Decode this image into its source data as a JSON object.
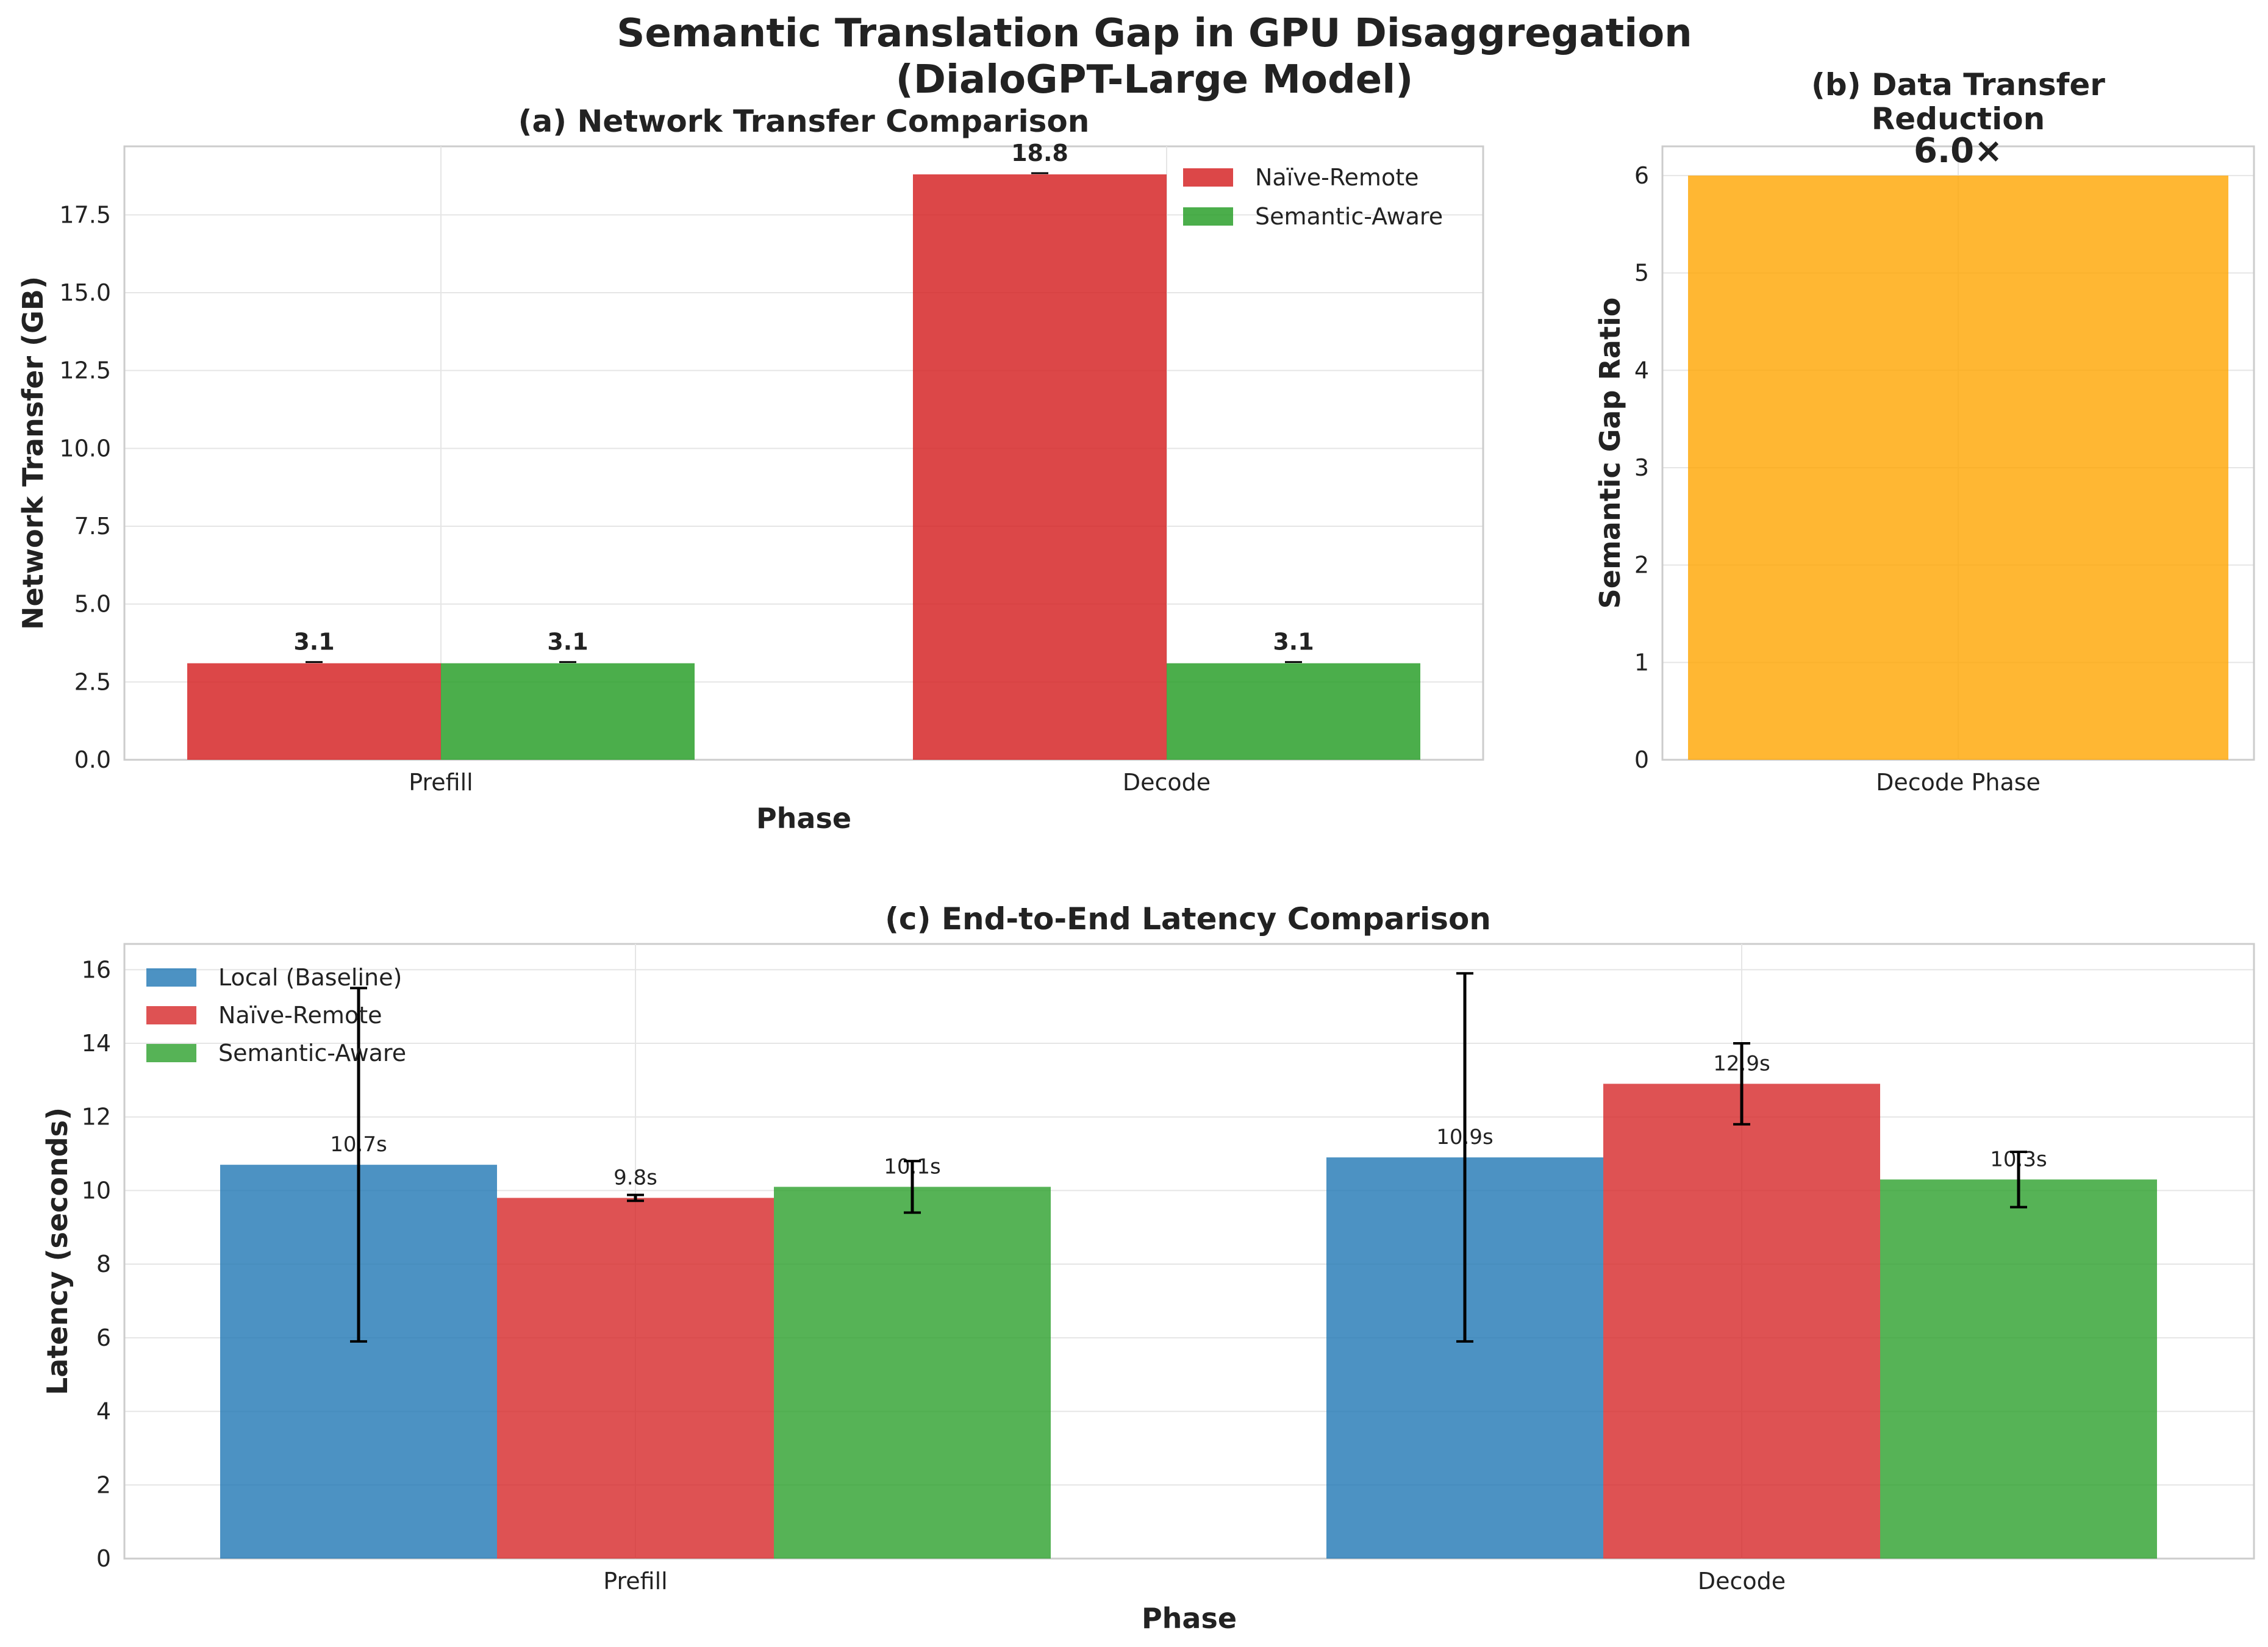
{
  "suptitle": {
    "line1": "Semantic Translation Gap in GPU Disaggregation",
    "line2": "(DialoGPT-Large Model)"
  },
  "colors": {
    "local": "#1f77b4",
    "naive": "#d62728",
    "semantic": "#2ca02c",
    "ratio": "#ffa500",
    "grid": "#e5e5e5",
    "spine": "#cccccc",
    "text": "#222222"
  },
  "chart_data": [
    {
      "id": "a",
      "type": "bar",
      "title": "(a) Network Transfer Comparison",
      "xlabel": "Phase",
      "ylabel": "Network Transfer (GB)",
      "categories": [
        "Prefill",
        "Decode"
      ],
      "ylim": [
        0,
        19.7
      ],
      "yticks": [
        0.0,
        2.5,
        5.0,
        7.5,
        10.0,
        12.5,
        15.0,
        17.5
      ],
      "ytick_labels": [
        "0.0",
        "2.5",
        "5.0",
        "7.5",
        "10.0",
        "12.5",
        "15.0",
        "17.5"
      ],
      "legend": "top-right",
      "grid": true,
      "series": [
        {
          "name": "Naïve-Remote",
          "color": "#d62728",
          "values": [
            3.1,
            18.8
          ],
          "labels": [
            "3.1",
            "18.8"
          ]
        },
        {
          "name": "Semantic-Aware",
          "color": "#2ca02c",
          "values": [
            3.1,
            3.1
          ],
          "labels": [
            "3.1",
            "3.1"
          ]
        }
      ]
    },
    {
      "id": "b",
      "type": "bar",
      "title_line1": "(b) Data Transfer",
      "title_line2": "Reduction",
      "ylabel": "Semantic Gap Ratio",
      "categories": [
        "Decode Phase"
      ],
      "values": [
        6.0
      ],
      "labels": [
        "6.0×"
      ],
      "color": "#ffa500",
      "ylim": [
        0,
        6.3
      ],
      "yticks": [
        0,
        1,
        2,
        3,
        4,
        5,
        6
      ],
      "ytick_labels": [
        "0",
        "1",
        "2",
        "3",
        "4",
        "5",
        "6"
      ],
      "grid": true
    },
    {
      "id": "c",
      "type": "bar",
      "title": "(c) End-to-End Latency Comparison",
      "xlabel": "Phase",
      "ylabel": "Latency (seconds)",
      "categories": [
        "Prefill",
        "Decode"
      ],
      "ylim": [
        0,
        16.7
      ],
      "yticks": [
        0,
        2,
        4,
        6,
        8,
        10,
        12,
        14,
        16
      ],
      "ytick_labels": [
        "0",
        "2",
        "4",
        "6",
        "8",
        "10",
        "12",
        "14",
        "16"
      ],
      "legend": "top-left",
      "grid": true,
      "series": [
        {
          "name": "Local (Baseline)",
          "color": "#1f77b4",
          "values": [
            10.7,
            10.9
          ],
          "errors": [
            4.8,
            5.0
          ],
          "labels": [
            "10.7s",
            "10.9s"
          ]
        },
        {
          "name": "Naïve-Remote",
          "color": "#d62728",
          "values": [
            9.8,
            12.9
          ],
          "errors": [
            0.08,
            1.1
          ],
          "labels": [
            "9.8s",
            "12.9s"
          ]
        },
        {
          "name": "Semantic-Aware",
          "color": "#2ca02c",
          "values": [
            10.1,
            10.3
          ],
          "errors": [
            0.7,
            0.75
          ],
          "labels": [
            "10.1s",
            "10.3s"
          ]
        }
      ]
    }
  ]
}
